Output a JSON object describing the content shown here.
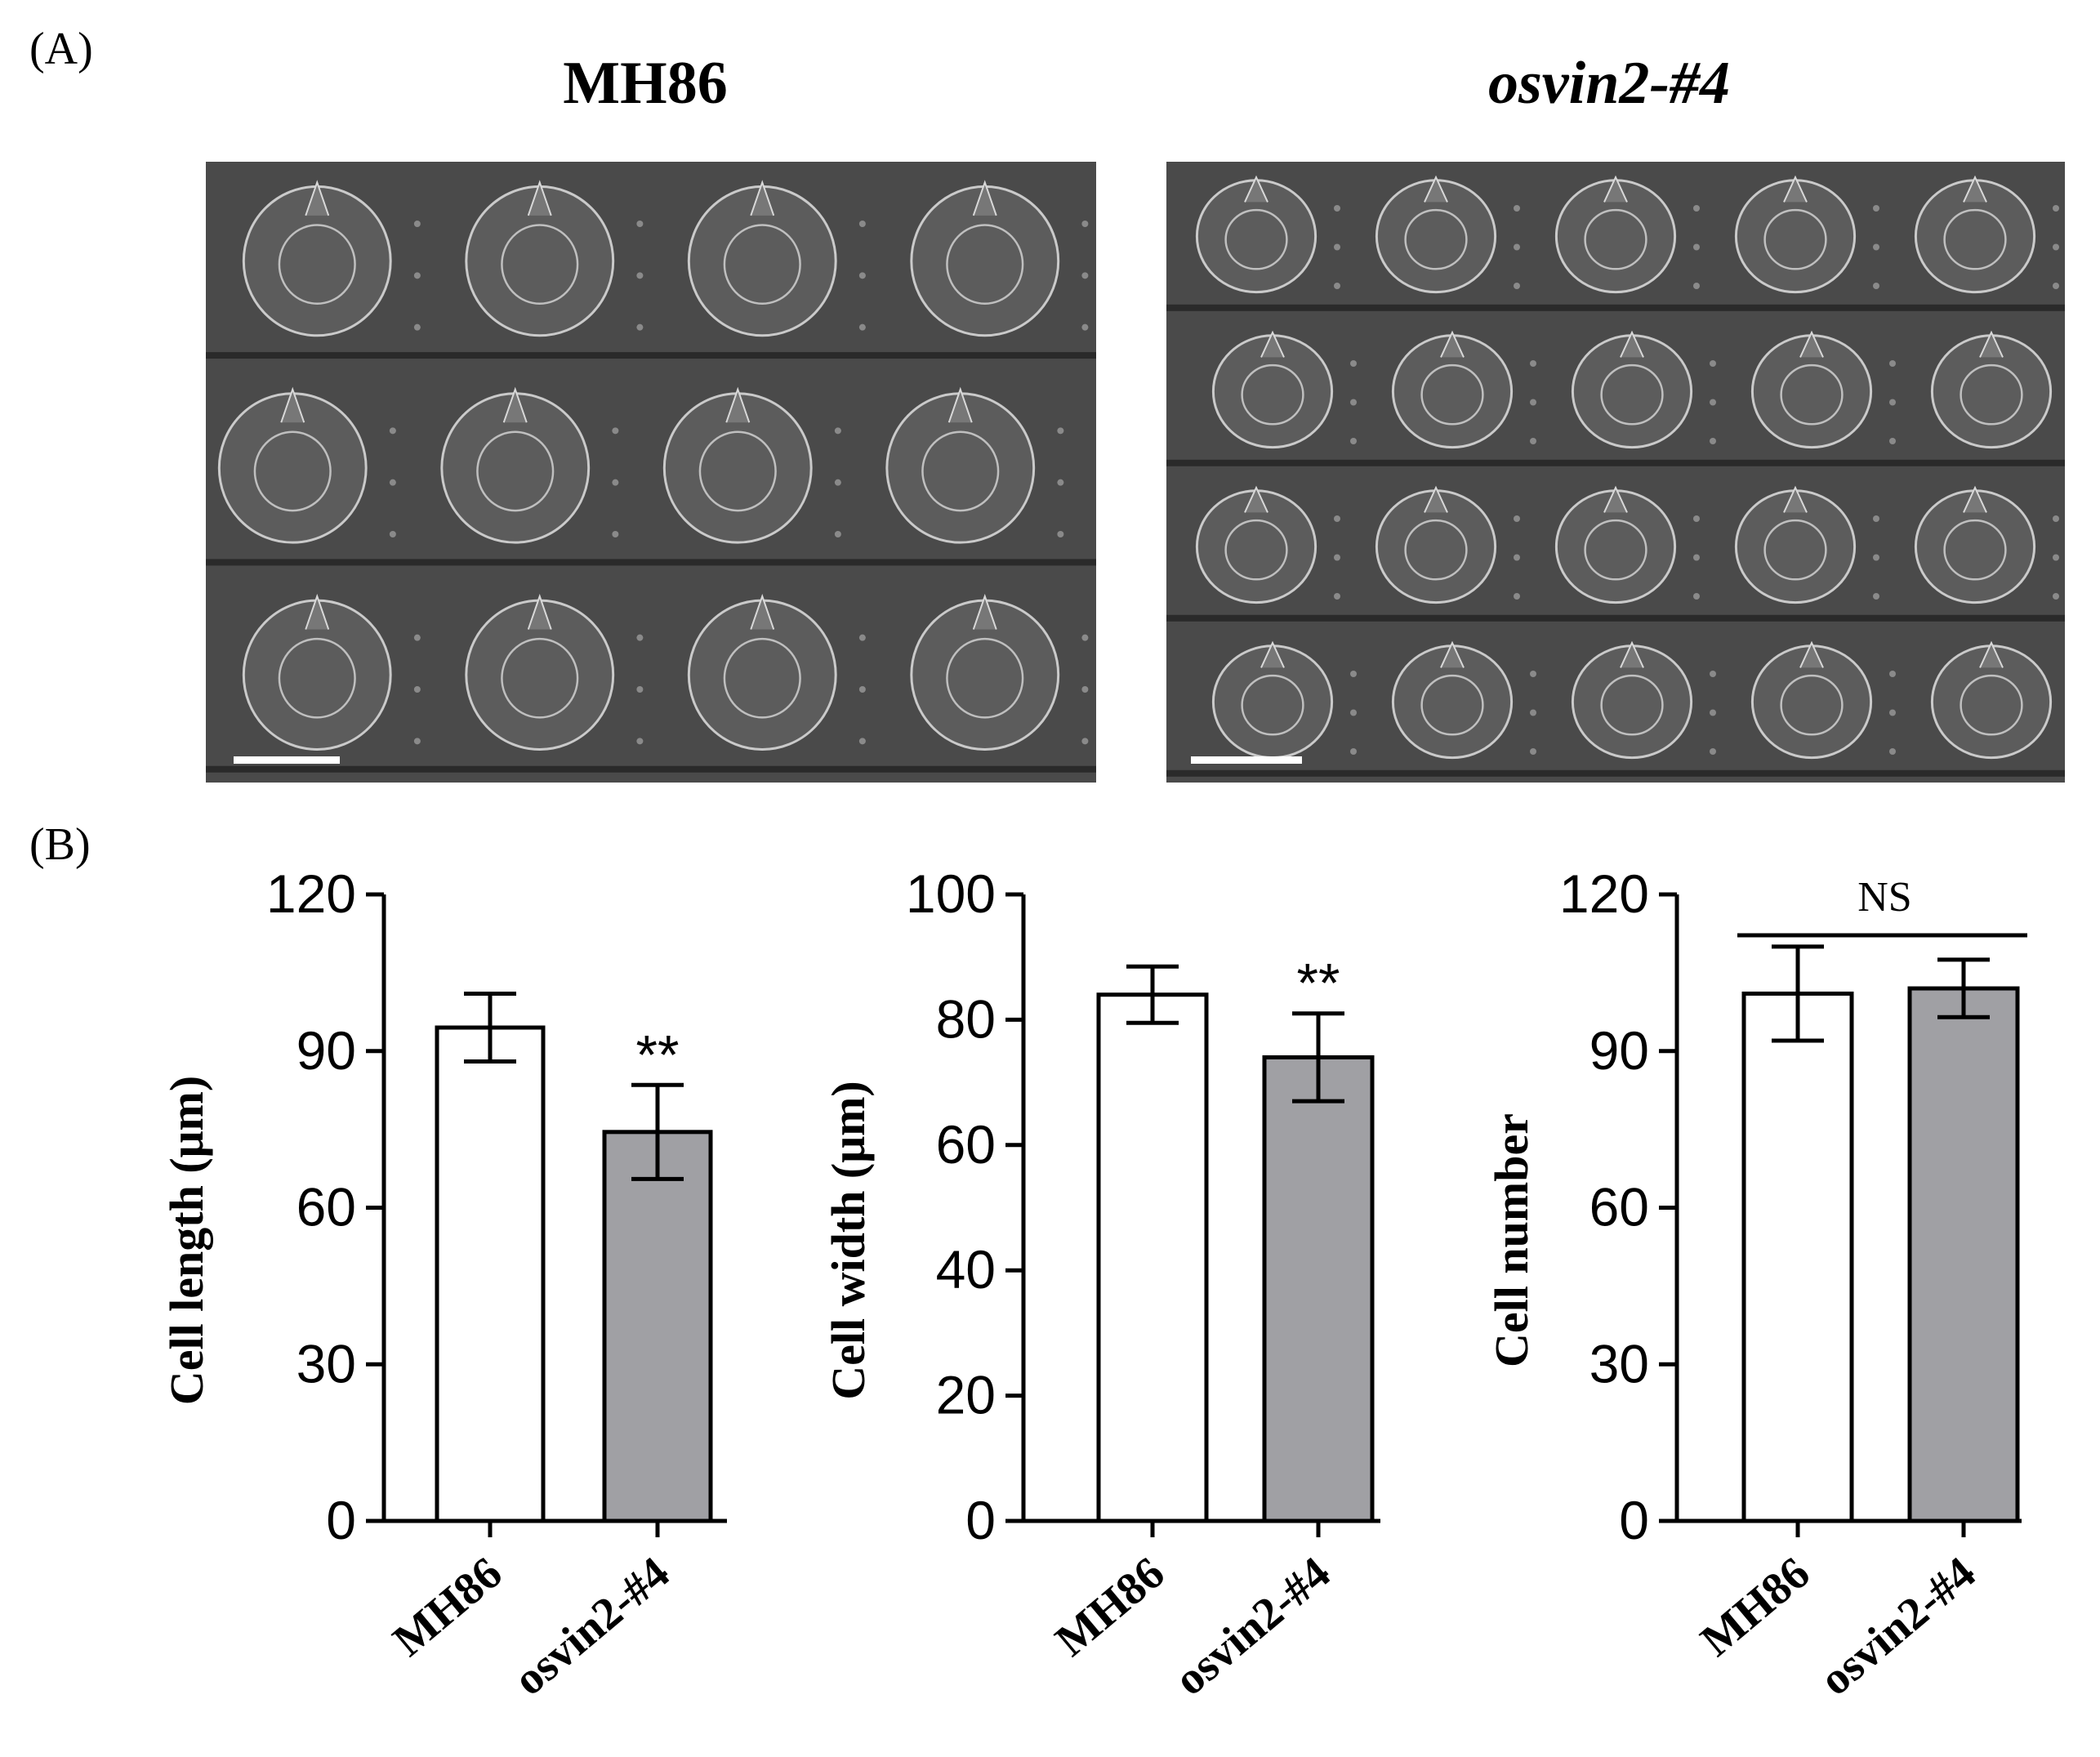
{
  "panel_a": {
    "label": "(A)",
    "images": [
      {
        "title": "MH86"
      },
      {
        "title": "osvin2-#4"
      }
    ]
  },
  "panel_b": {
    "label": "(B)"
  },
  "colors": {
    "bar_a": "#ffffff",
    "bar_b": "#a0a0a4",
    "stroke": "#000000",
    "sem_bg": "#4a4a4a",
    "cell": "#d8d8d8"
  },
  "chart_data": [
    {
      "type": "bar",
      "categories": [
        "MH86",
        "osvin2-#4"
      ],
      "values": [
        94.5,
        74.5
      ],
      "errors": [
        6.5,
        9.0
      ],
      "ylabel": "Cell length (μm)",
      "ylim": [
        0,
        120
      ],
      "yticks": [
        "0",
        "30",
        "60",
        "90",
        "120"
      ],
      "significance": [
        {
          "bar": 1,
          "label": "**"
        }
      ]
    },
    {
      "type": "bar",
      "categories": [
        "MH86",
        "osvin2-#4"
      ],
      "values": [
        84.0,
        74.0
      ],
      "errors": [
        4.5,
        7.0
      ],
      "ylabel": "Cell width (μm)",
      "ylim": [
        0,
        100
      ],
      "yticks": [
        "0",
        "20",
        "40",
        "60",
        "80",
        "100"
      ],
      "significance": [
        {
          "bar": 1,
          "label": "**"
        }
      ]
    },
    {
      "type": "bar",
      "categories": [
        "MH86",
        "osvin2-#4"
      ],
      "values": [
        101.0,
        102.0
      ],
      "errors": [
        9.0,
        5.5
      ],
      "ylabel": "Cell number",
      "ylim": [
        0,
        120
      ],
      "yticks": [
        "0",
        "30",
        "60",
        "90",
        "120"
      ],
      "bracket_label": "NS"
    }
  ]
}
